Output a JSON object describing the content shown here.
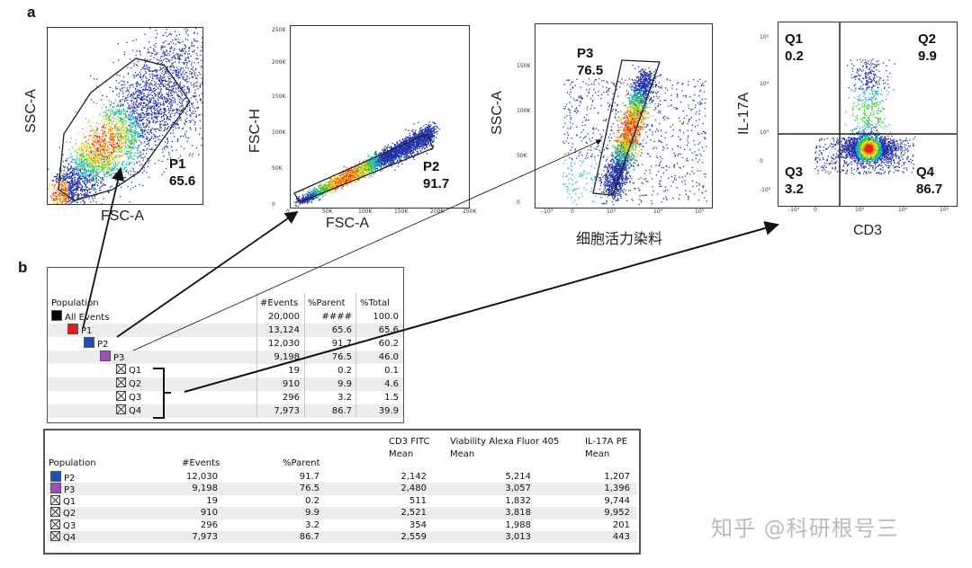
{
  "panels": {
    "a": "a",
    "b": "b"
  },
  "chart_data": [
    {
      "type": "scatter",
      "title": "",
      "xlabel": "FSC-A",
      "ylabel": "SSC-A",
      "gate": {
        "name": "P1",
        "value": "65.6"
      },
      "x_ticks": [],
      "y_ticks": []
    },
    {
      "type": "scatter",
      "title": "",
      "xlabel": "FSC-A",
      "ylabel": "FSC-H",
      "gate": {
        "name": "P2",
        "value": "91.7"
      },
      "x_ticks": [
        "0",
        "50K",
        "100K",
        "150K",
        "200K",
        "250K"
      ],
      "y_ticks": [
        "0",
        "50K",
        "100K",
        "150K",
        "200K",
        "250K"
      ]
    },
    {
      "type": "scatter",
      "title": "",
      "xlabel": "细胞活力染料",
      "ylabel": "SSC-A",
      "gate": {
        "name": "P3",
        "value": "76.5"
      },
      "x_ticks": [
        "-10³",
        "0",
        "10³",
        "10⁴",
        "10⁵"
      ],
      "y_ticks": [
        "0",
        "50K",
        "100K",
        "150K"
      ]
    },
    {
      "type": "scatter",
      "title": "",
      "xlabel": "CD3",
      "ylabel": "IL-17A",
      "quadrants": [
        {
          "name": "Q1",
          "value": "0.2"
        },
        {
          "name": "Q2",
          "value": "9.9"
        },
        {
          "name": "Q3",
          "value": "3.2"
        },
        {
          "name": "Q4",
          "value": "86.7"
        }
      ],
      "x_ticks": [
        "-10³",
        "0",
        "10³",
        "10⁴",
        "10⁵"
      ],
      "y_ticks": [
        "-10³",
        "0",
        "10³",
        "10⁴",
        "10⁵"
      ]
    }
  ],
  "table1": {
    "headers": [
      "Population",
      "#Events",
      "%Parent",
      "%Total"
    ],
    "rows": [
      {
        "name": "All Events",
        "swatch": "#000000",
        "level": 0,
        "events": "20,000",
        "parent": "####",
        "total": "100.0"
      },
      {
        "name": "P1",
        "swatch": "#e31a1c",
        "level": 1,
        "events": "13,124",
        "parent": "65.6",
        "total": "65.6"
      },
      {
        "name": "P2",
        "swatch": "#1f4fbf",
        "level": 2,
        "events": "12,030",
        "parent": "91.7",
        "total": "60.2"
      },
      {
        "name": "P3",
        "swatch": "#9b4fb5",
        "level": 3,
        "events": "9,198",
        "parent": "76.5",
        "total": "46.0"
      },
      {
        "name": "Q1",
        "swatch": "quad",
        "level": 4,
        "events": "19",
        "parent": "0.2",
        "total": "0.1"
      },
      {
        "name": "Q2",
        "swatch": "quad",
        "level": 4,
        "events": "910",
        "parent": "9.9",
        "total": "4.6"
      },
      {
        "name": "Q3",
        "swatch": "quad",
        "level": 4,
        "events": "296",
        "parent": "3.2",
        "total": "1.5"
      },
      {
        "name": "Q4",
        "swatch": "quad",
        "level": 4,
        "events": "7,973",
        "parent": "86.7",
        "total": "39.9"
      }
    ]
  },
  "table2": {
    "headers": {
      "population": "Population",
      "events": "#Events",
      "parent": "%Parent",
      "cd3_1": "CD3 FITC",
      "cd3_2": "Mean",
      "via_1": "Viability Alexa Fluor 405",
      "via_2": "Mean",
      "il_1": "IL-17A PE",
      "il_2": "Mean"
    },
    "rows": [
      {
        "name": "P2",
        "swatch": "#1f4fbf",
        "events": "12,030",
        "parent": "91.7",
        "cd3": "2,142",
        "via": "5,214",
        "il": "1,207"
      },
      {
        "name": "P3",
        "swatch": "#9b4fb5",
        "events": "9,198",
        "parent": "76.5",
        "cd3": "2,480",
        "via": "3,057",
        "il": "1,396"
      },
      {
        "name": "Q1",
        "swatch": "quad",
        "events": "19",
        "parent": "0.2",
        "cd3": "511",
        "via": "1,832",
        "il": "9,744"
      },
      {
        "name": "Q2",
        "swatch": "quad",
        "events": "910",
        "parent": "9.9",
        "cd3": "2,521",
        "via": "3,818",
        "il": "9,952"
      },
      {
        "name": "Q3",
        "swatch": "quad",
        "events": "296",
        "parent": "3.2",
        "cd3": "354",
        "via": "1,988",
        "il": "201"
      },
      {
        "name": "Q4",
        "swatch": "quad",
        "events": "7,973",
        "parent": "86.7",
        "cd3": "2,559",
        "via": "3,013",
        "il": "443"
      }
    ]
  },
  "watermark": "知乎 @科研根号三"
}
